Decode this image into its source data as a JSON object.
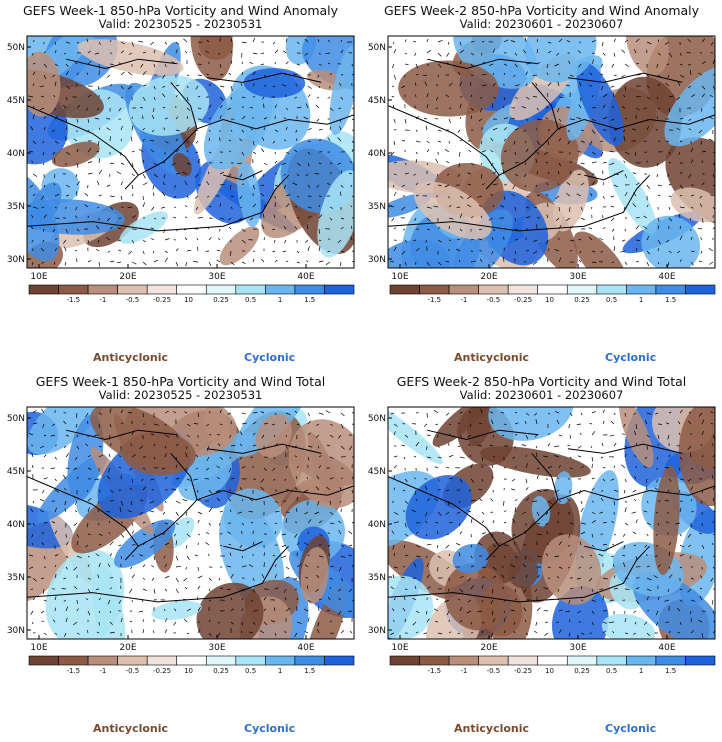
{
  "panels": [
    {
      "id": "p1",
      "title": "GEFS Week-1 850-hPa Vorticity and Wind Anomaly",
      "valid": "Valid: 20230525 - 20230531",
      "seed": 11
    },
    {
      "id": "p2",
      "title": "GEFS Week-2 850-hPa Vorticity and Wind Anomaly",
      "valid": "Valid: 20230601 - 20230607",
      "seed": 23
    },
    {
      "id": "p3",
      "title": "GEFS Week-1 850-hPa Vorticity and Wind Total",
      "valid": "Valid: 20230525 - 20230531",
      "seed": 37
    },
    {
      "id": "p4",
      "title": "GEFS Week-2 850-hPa Vorticity and Wind Total",
      "valid": "Valid: 20230601 - 20230607",
      "seed": 51
    }
  ],
  "axes": {
    "lon_ticks": [
      "10E",
      "20E",
      "30E",
      "40E"
    ],
    "lat_ticks": [
      "50N",
      "45N",
      "40N",
      "35N",
      "30N"
    ]
  },
  "colorbar": {
    "labels": [
      "-1.5",
      "-1",
      "-0.5",
      "-0.25",
      "0.25",
      "0.5",
      "1",
      "1.5"
    ],
    "reference_vector": "10",
    "colors": [
      "#6e4332",
      "#8c5a45",
      "#b98e7b",
      "#dcc0b0",
      "#f1e3db",
      "#ffffff",
      "#dff6fb",
      "#a8e4f5",
      "#6bb6ee",
      "#3f8ce4",
      "#1f63dc"
    ]
  },
  "legend": {
    "anticyclonic": "Anticyclonic",
    "cyclonic": "Cyclonic"
  }
}
